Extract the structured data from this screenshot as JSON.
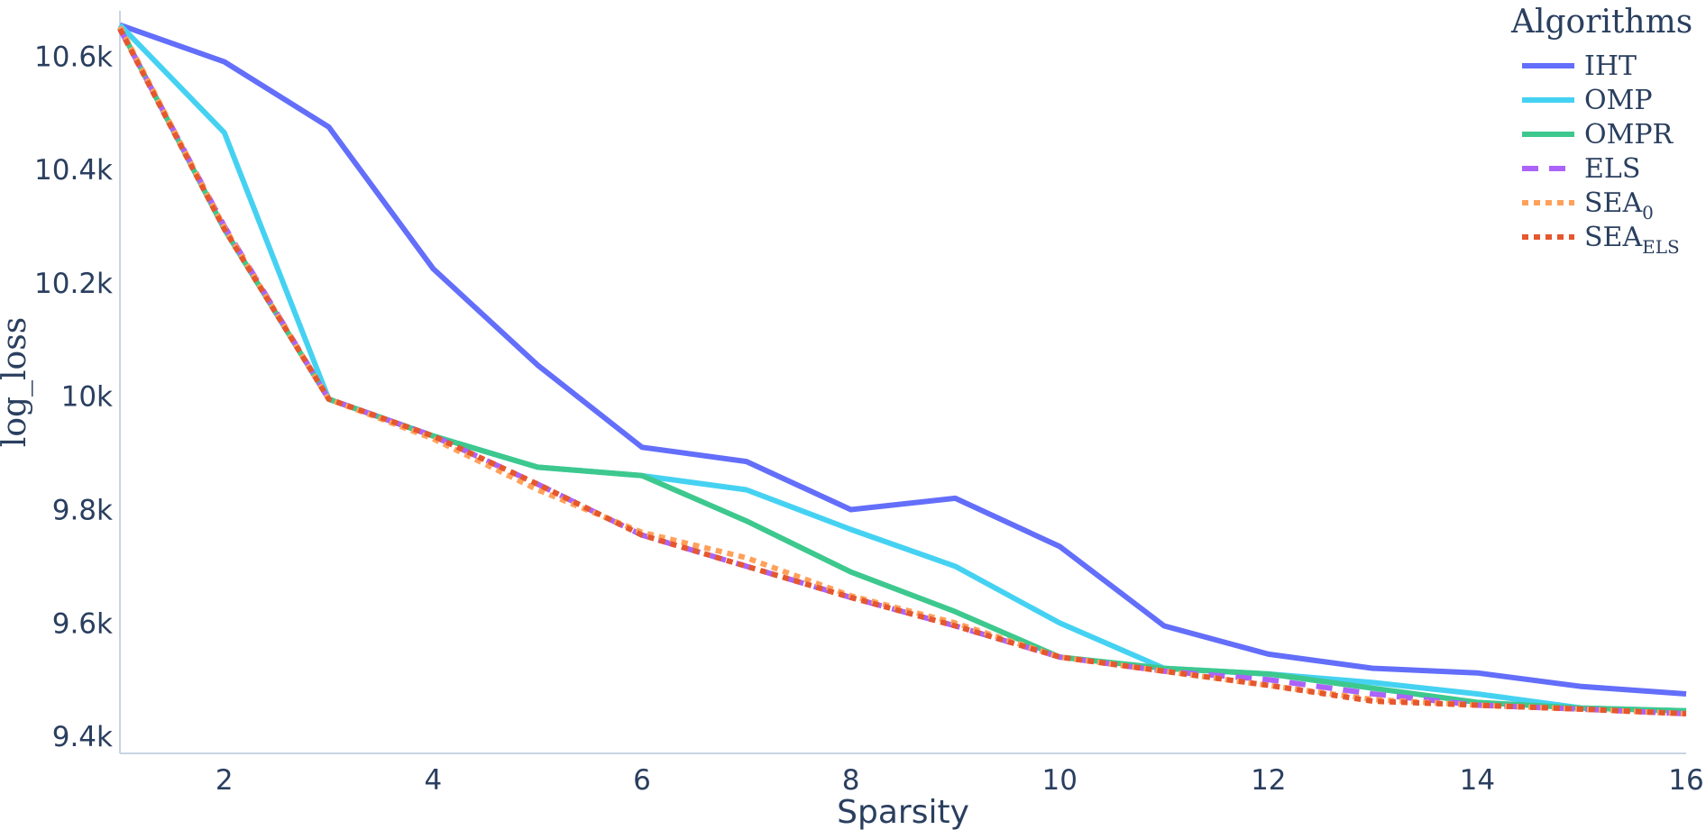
{
  "chart_data": {
    "type": "line",
    "xlabel": "Sparsity",
    "ylabel": "log_loss",
    "xlim": [
      1,
      16
    ],
    "ylim": [
      9370,
      10680
    ],
    "x_ticks": [
      2,
      4,
      6,
      8,
      10,
      12,
      14,
      16
    ],
    "y_ticks": [
      9400,
      9600,
      9800,
      10000,
      10200,
      10400,
      10600
    ],
    "y_tick_labels": [
      "9.4k",
      "9.6k",
      "9.8k",
      "10k",
      "10.2k",
      "10.4k",
      "10.6k"
    ],
    "grid": false,
    "legend": {
      "title": "Algorithms",
      "placement": "top-right"
    },
    "x": [
      1,
      2,
      3,
      4,
      5,
      6,
      7,
      8,
      9,
      10,
      11,
      12,
      13,
      14,
      15,
      16
    ],
    "series": [
      {
        "name": "IHT",
        "subscript": "",
        "color": "#636efa",
        "dash": "solid",
        "values": [
          10655,
          10590,
          10475,
          10225,
          10055,
          9910,
          9885,
          9800,
          9820,
          9735,
          9595,
          9545,
          9520,
          9512,
          9488,
          9475
        ]
      },
      {
        "name": "OMP",
        "subscript": "",
        "color": "#45d2f2",
        "dash": "solid",
        "values": [
          10655,
          10465,
          9995,
          9930,
          9875,
          9860,
          9835,
          9765,
          9700,
          9600,
          9520,
          9510,
          9495,
          9475,
          9450,
          9445
        ]
      },
      {
        "name": "OMPR",
        "subscript": "",
        "color": "#3dc88e",
        "dash": "solid",
        "values": [
          10650,
          10295,
          9995,
          9930,
          9875,
          9860,
          9780,
          9690,
          9620,
          9540,
          9520,
          9510,
          9485,
          9460,
          9450,
          9445
        ]
      },
      {
        "name": "ELS",
        "subscript": "",
        "color": "#ab63fa",
        "dash": "dash",
        "values": [
          10648,
          10300,
          9995,
          9930,
          9845,
          9755,
          9700,
          9645,
          9595,
          9540,
          9515,
          9500,
          9475,
          9455,
          9448,
          9440
        ]
      },
      {
        "name": "SEA",
        "subscript": "0",
        "color": "#ffa15a",
        "dash": "dot",
        "values": [
          10652,
          10298,
          9995,
          9925,
          9835,
          9760,
          9715,
          9648,
          9600,
          9540,
          9515,
          9490,
          9465,
          9455,
          9448,
          9440
        ]
      },
      {
        "name": "SEA",
        "subscript": "ELS",
        "color": "#e5572e",
        "dash": "dot",
        "values": [
          10648,
          10295,
          9995,
          9930,
          9845,
          9755,
          9700,
          9645,
          9595,
          9540,
          9515,
          9490,
          9462,
          9455,
          9448,
          9440
        ]
      }
    ]
  }
}
